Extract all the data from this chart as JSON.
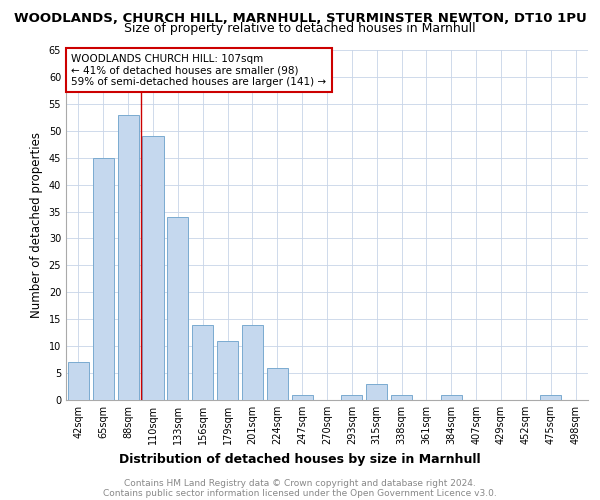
{
  "title": "WOODLANDS, CHURCH HILL, MARNHULL, STURMINSTER NEWTON, DT10 1PU",
  "subtitle": "Size of property relative to detached houses in Marnhull",
  "xlabel": "Distribution of detached houses by size in Marnhull",
  "ylabel": "Number of detached properties",
  "footnote1": "Contains HM Land Registry data © Crown copyright and database right 2024.",
  "footnote2": "Contains public sector information licensed under the Open Government Licence v3.0.",
  "bar_labels": [
    "42sqm",
    "65sqm",
    "88sqm",
    "110sqm",
    "133sqm",
    "156sqm",
    "179sqm",
    "201sqm",
    "224sqm",
    "247sqm",
    "270sqm",
    "293sqm",
    "315sqm",
    "338sqm",
    "361sqm",
    "384sqm",
    "407sqm",
    "429sqm",
    "452sqm",
    "475sqm",
    "498sqm"
  ],
  "bar_values": [
    7,
    45,
    53,
    49,
    34,
    14,
    11,
    14,
    6,
    1,
    0,
    1,
    3,
    1,
    0,
    1,
    0,
    0,
    0,
    1,
    0
  ],
  "bar_color": "#c5d8ee",
  "bar_edge_color": "#7aaad0",
  "vline_x_index": 3,
  "vline_color": "#cc0000",
  "annotation_text": "WOODLANDS CHURCH HILL: 107sqm\n← 41% of detached houses are smaller (98)\n59% of semi-detached houses are larger (141) →",
  "annotation_box_color": "#cc0000",
  "ylim": [
    0,
    65
  ],
  "yticks": [
    0,
    5,
    10,
    15,
    20,
    25,
    30,
    35,
    40,
    45,
    50,
    55,
    60,
    65
  ],
  "grid_color": "#c8d4e8",
  "title_fontsize": 9.5,
  "subtitle_fontsize": 9,
  "xlabel_fontsize": 9,
  "ylabel_fontsize": 8.5,
  "tick_fontsize": 7,
  "annotation_fontsize": 7.5,
  "footnote_fontsize": 6.5,
  "footnote_color": "#888888"
}
